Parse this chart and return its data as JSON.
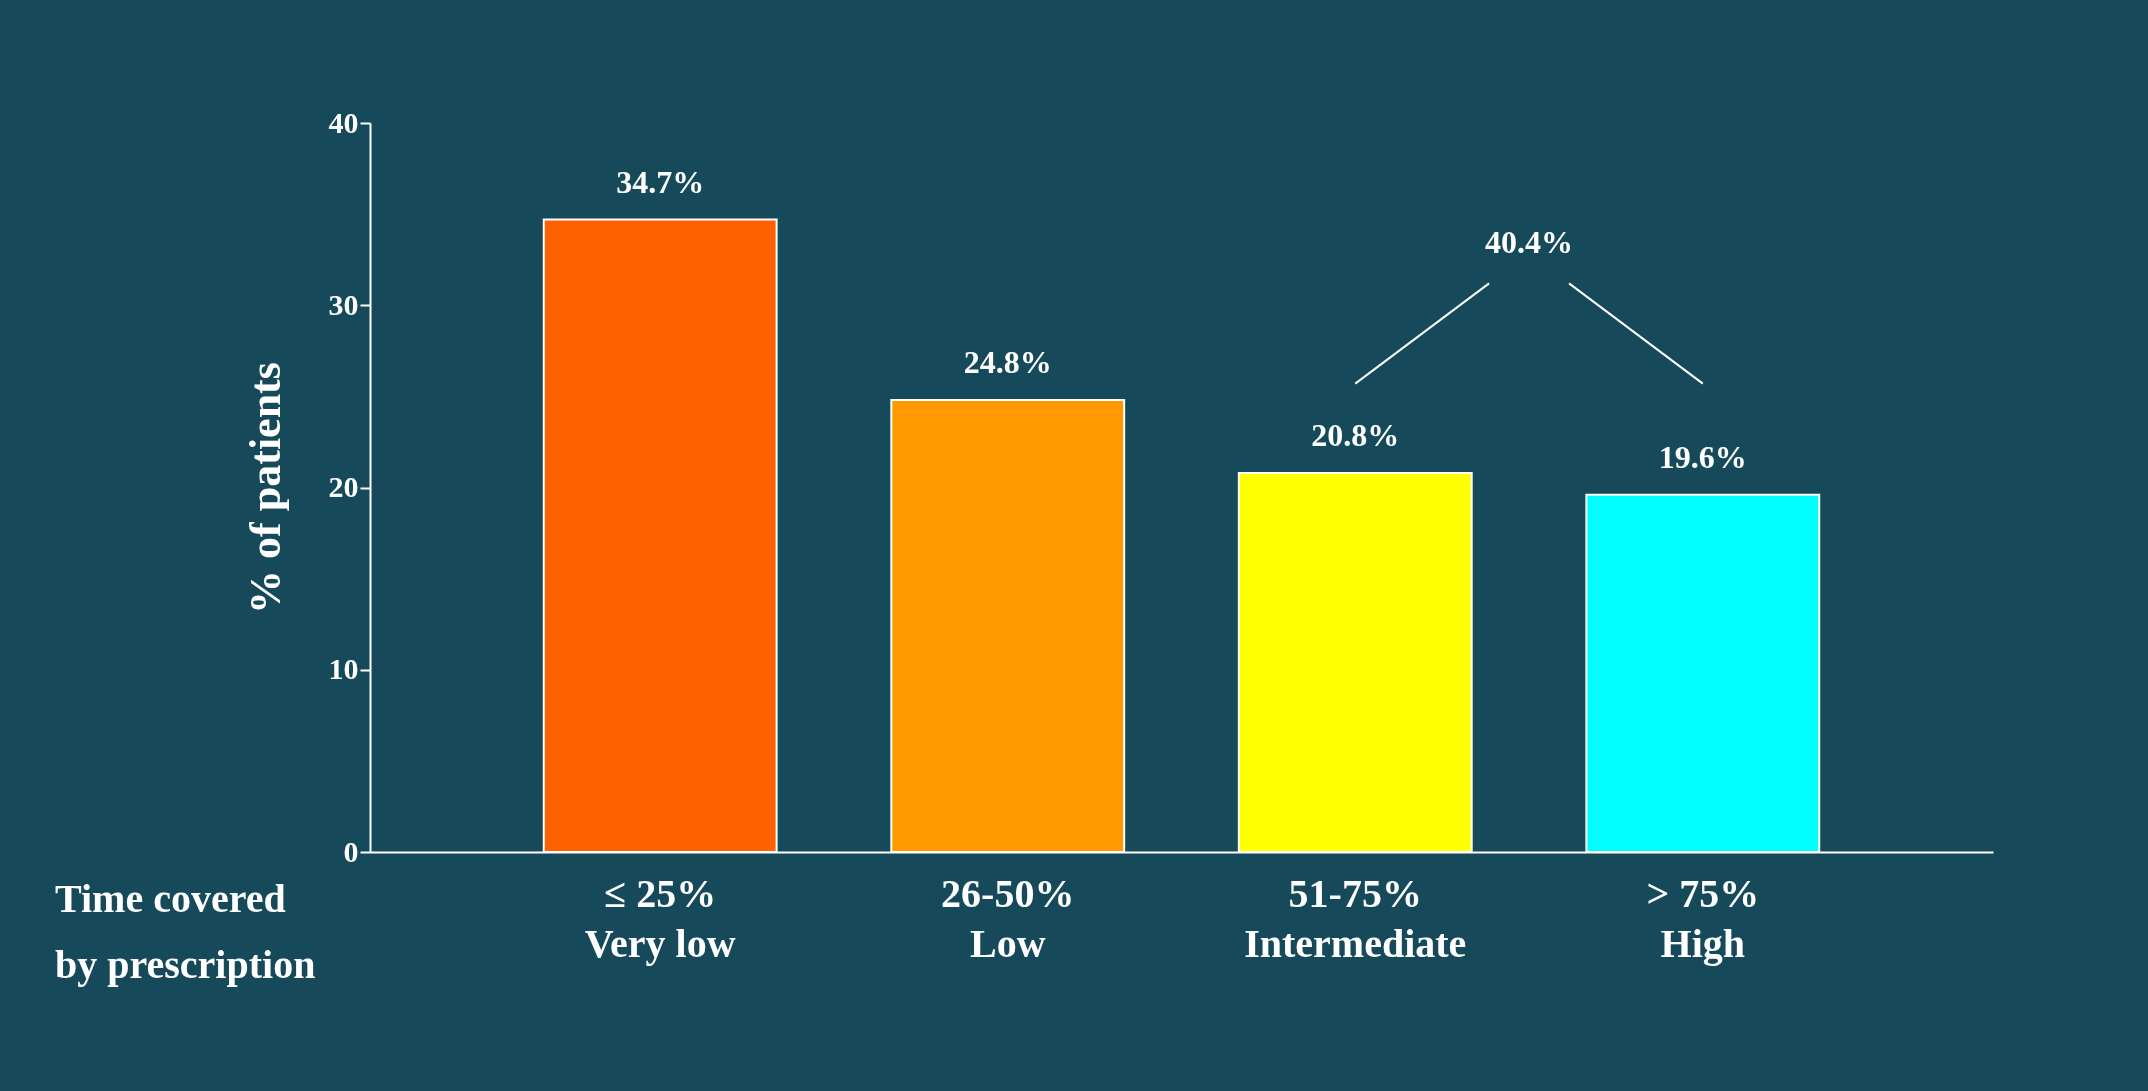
{
  "chart_data": {
    "type": "bar",
    "categories": [
      "≤ 25%\nVery low",
      "26-50%\nLow",
      "51-75%\nIntermediate",
      "> 75%\nHigh"
    ],
    "values": [
      34.7,
      24.8,
      20.8,
      19.6
    ],
    "value_labels": [
      "34.7%",
      "24.8%",
      "20.8%",
      "19.6%"
    ],
    "colors": [
      "#ff6000",
      "#ff9900",
      "#ffff00",
      "#00ffff"
    ],
    "xlabel": "Time covered\nby prescription",
    "ylabel": "% of patients",
    "ylim": [
      0,
      40
    ],
    "yticks": [
      0,
      10,
      20,
      30,
      40
    ],
    "annotations": [
      "40.4%"
    ],
    "grid": false
  }
}
